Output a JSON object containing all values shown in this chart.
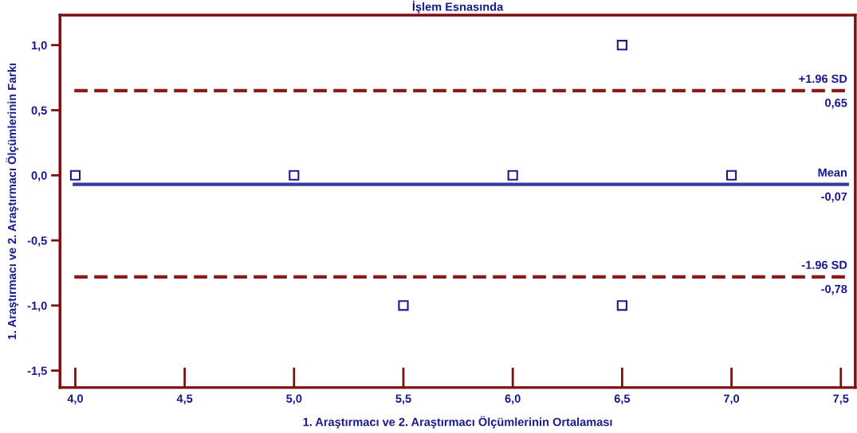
{
  "chart_data": {
    "type": "scatter",
    "title": "İşlem Esnasında",
    "xlabel": "1. Araştırmacı ve 2. Araştırmacı Ölçümlerinin Ortalaması",
    "ylabel": "1. Araştırmacı ve 2. Araştırmacı Ölçümlerinin Farkı",
    "x": [
      4.0,
      5.0,
      6.0,
      7.0,
      6.5,
      5.5,
      6.5
    ],
    "values": [
      0,
      0,
      0,
      0,
      1.0,
      -1.0,
      -1.0
    ],
    "color": "#1a1a8c",
    "marker": "square",
    "xlim": [
      3.93,
      7.566
    ],
    "ylim": [
      -1.63,
      1.23
    ],
    "xticks": [
      {
        "value": 4.0,
        "label": "4,0"
      },
      {
        "value": 4.5,
        "label": "4,5"
      },
      {
        "value": 5.0,
        "label": "5,0"
      },
      {
        "value": 5.5,
        "label": "5,5"
      },
      {
        "value": 6.0,
        "label": "6,0"
      },
      {
        "value": 6.5,
        "label": "6,5"
      },
      {
        "value": 7.0,
        "label": "7,0"
      },
      {
        "value": 7.5,
        "label": "7,5"
      }
    ],
    "yticks": [
      {
        "value": -1.5,
        "label": "-1,5"
      },
      {
        "value": -1.0,
        "label": "-1,0"
      },
      {
        "value": -0.5,
        "label": "-0,5"
      },
      {
        "value": 0.0,
        "label": "0,0"
      },
      {
        "value": 0.5,
        "label": "0,5"
      },
      {
        "value": 1.0,
        "label": "1,0"
      }
    ],
    "ref_lines": [
      {
        "axis": "y",
        "value": 0.65,
        "label": "+1.96 SD\n0,65",
        "color": "#8b1a1a",
        "line_style": "dashed"
      },
      {
        "axis": "y",
        "value": -0.07,
        "label": "Mean\n-0,07",
        "color": "#3a3aa0",
        "line_style": "solid"
      },
      {
        "axis": "y",
        "value": -0.78,
        "label": "-1.96 SD\n-0,78",
        "color": "#8b1a1a",
        "line_style": "dashed"
      }
    ],
    "grid": false,
    "legend": false
  }
}
